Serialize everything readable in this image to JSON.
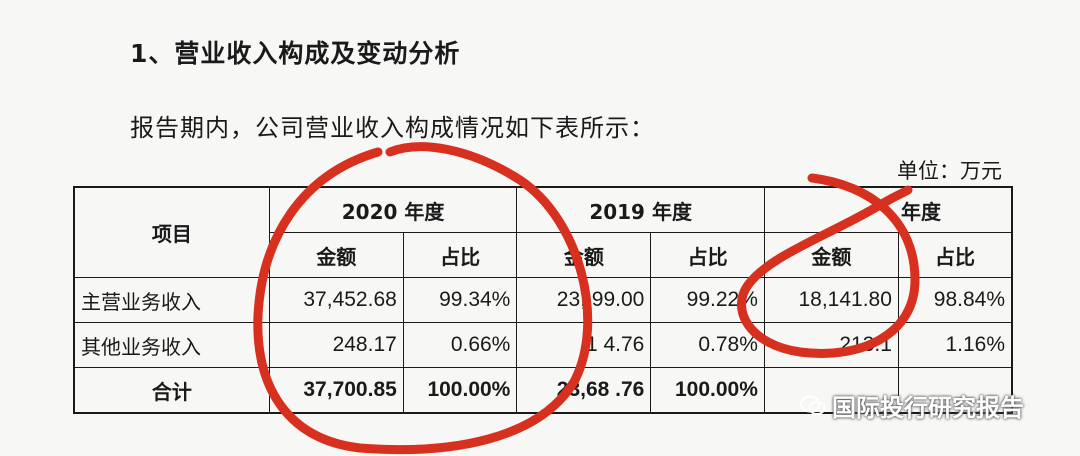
{
  "heading": "1、营业收入构成及变动分析",
  "intro": "报告期内，公司营业收入构成情况如下表所示：",
  "unit": "单位：万元",
  "table": {
    "item_header": "项目",
    "years": [
      "2020 年度",
      "2019 年度",
      "年度"
    ],
    "sub_headers": {
      "amount": "金额",
      "ratio": "占比"
    },
    "rows": [
      {
        "label": "主营业务收入",
        "cells": [
          "37,452.68",
          "99.34%",
          "23,   99.00",
          "99.22%",
          "18,141.80",
          "98.84%"
        ]
      },
      {
        "label": "其他业务收入",
        "cells": [
          "248.17",
          "0.66%",
          "1  4.76",
          "0.78%",
          "213.1",
          "1.16%"
        ]
      },
      {
        "label": "合计",
        "cells": [
          "37,700.85",
          "100.00%",
          "23,68  .76",
          "100.00%",
          "",
          ""
        ]
      }
    ]
  },
  "watermark": "国际投行研究报告",
  "colors": {
    "annotation": "#d8301f",
    "text": "#1a1a1a",
    "background": "#f7f7f5"
  }
}
